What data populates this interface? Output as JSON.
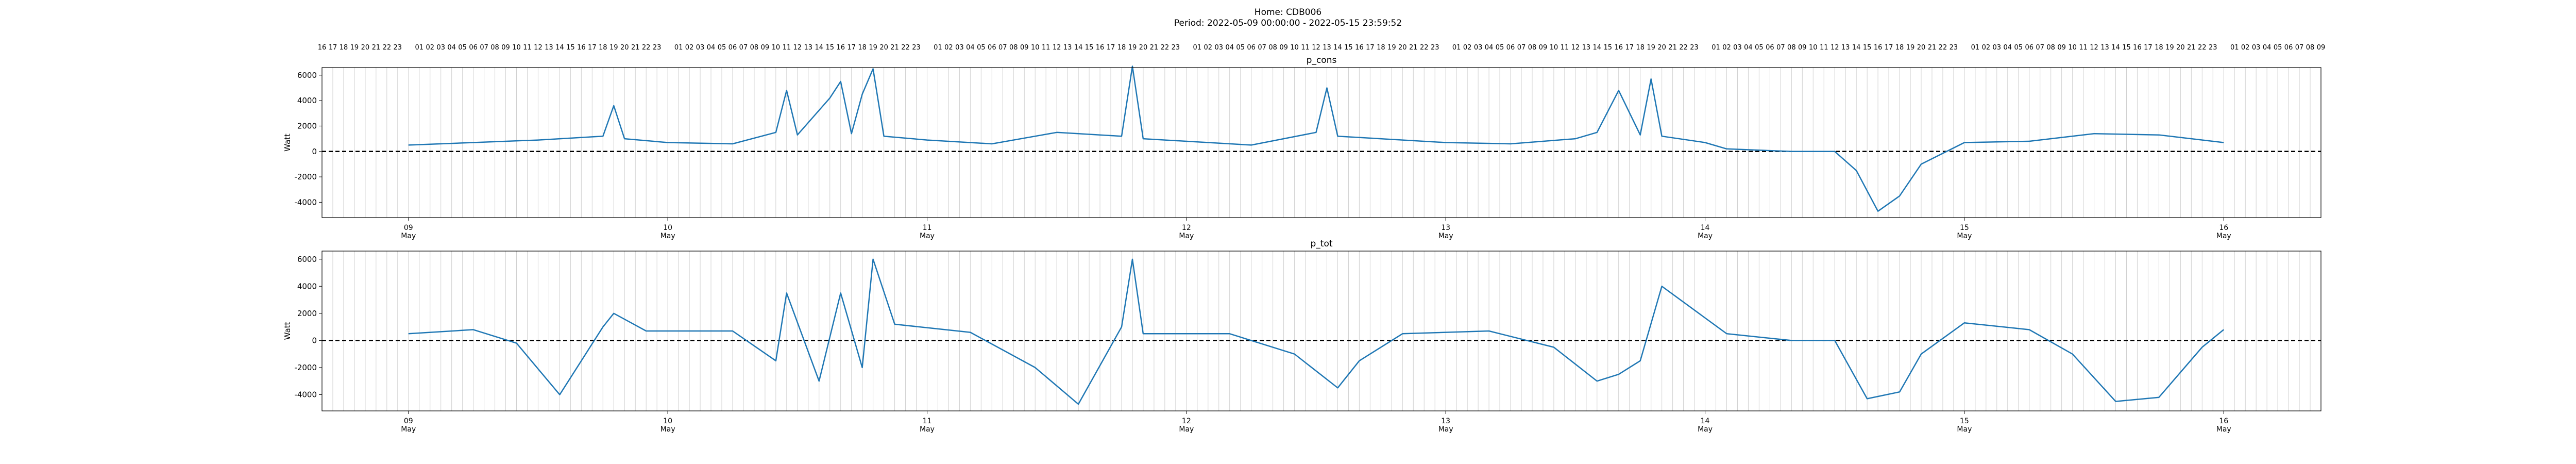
{
  "figure": {
    "title": "Home: CDB006",
    "subtitle": "Period: 2022-05-09 00:00:00 - 2022-05-15 23:59:52"
  },
  "chart_data": [
    {
      "type": "line",
      "title": "p_cons",
      "xlabel": "",
      "ylabel": "Watt",
      "ylim": [
        -5200,
        6600
      ],
      "yticks": [
        -4000,
        -2000,
        0,
        2000,
        4000,
        6000
      ],
      "xlim": [
        "2022-05-08 16:00",
        "2022-05-16 09:00"
      ],
      "date_ticks": [
        "09",
        "10",
        "11",
        "12",
        "13",
        "14",
        "15",
        "16"
      ],
      "date_tick_month": "May",
      "top_hour_ticks": "hours 16 May-08 through 08 May-16, labelled hourly",
      "hourly_grid": true,
      "zero_line": {
        "y": 0,
        "style": "dashed",
        "color": "#000000"
      },
      "line_color": "#1f77b4",
      "series": [
        {
          "x": [
            "2022-05-09 00:00",
            "2022-05-09 06:00",
            "2022-05-09 12:00",
            "2022-05-09 18:00",
            "2022-05-09 19:00",
            "2022-05-09 20:00",
            "2022-05-10 00:00",
            "2022-05-10 06:00",
            "2022-05-10 10:00",
            "2022-05-10 11:00",
            "2022-05-10 12:00",
            "2022-05-10 15:00",
            "2022-05-10 16:00",
            "2022-05-10 17:00",
            "2022-05-10 18:00",
            "2022-05-10 19:00",
            "2022-05-10 20:00",
            "2022-05-11 00:00",
            "2022-05-11 06:00",
            "2022-05-11 12:00",
            "2022-05-11 18:00",
            "2022-05-11 19:00",
            "2022-05-11 20:00",
            "2022-05-12 00:00",
            "2022-05-12 06:00",
            "2022-05-12 12:00",
            "2022-05-12 13:00",
            "2022-05-12 14:00",
            "2022-05-13 00:00",
            "2022-05-13 06:00",
            "2022-05-13 12:00",
            "2022-05-13 14:00",
            "2022-05-13 16:00",
            "2022-05-13 18:00",
            "2022-05-13 19:00",
            "2022-05-13 20:00",
            "2022-05-14 00:00",
            "2022-05-14 02:00",
            "2022-05-14 08:00",
            "2022-05-14 12:00",
            "2022-05-14 14:00",
            "2022-05-14 16:00",
            "2022-05-14 18:00",
            "2022-05-14 20:00",
            "2022-05-15 00:00",
            "2022-05-15 06:00",
            "2022-05-15 12:00",
            "2022-05-15 18:00",
            "2022-05-16 00:00"
          ],
          "y": [
            500,
            700,
            900,
            1200,
            3600,
            1000,
            700,
            600,
            1500,
            4800,
            1300,
            4200,
            5500,
            1400,
            4500,
            6500,
            1200,
            900,
            600,
            1500,
            1200,
            6700,
            1000,
            800,
            500,
            1500,
            5000,
            1200,
            700,
            600,
            1000,
            1500,
            4800,
            1300,
            5700,
            1200,
            700,
            200,
            0,
            0,
            -1500,
            -4700,
            -3500,
            -1000,
            700,
            800,
            1400,
            1300,
            700
          ]
        }
      ]
    },
    {
      "type": "line",
      "title": "p_tot",
      "xlabel": "",
      "ylabel": "Watt",
      "ylim": [
        -5200,
        6600
      ],
      "yticks": [
        -4000,
        -2000,
        0,
        2000,
        4000,
        6000
      ],
      "xlim": [
        "2022-05-08 16:00",
        "2022-05-16 09:00"
      ],
      "date_ticks": [
        "09",
        "10",
        "11",
        "12",
        "13",
        "14",
        "15",
        "16"
      ],
      "date_tick_month": "May",
      "zero_line": {
        "y": 0,
        "style": "dashed",
        "color": "#000000"
      },
      "line_color": "#1f77b4",
      "series": [
        {
          "x": [
            "2022-05-09 00:00",
            "2022-05-09 06:00",
            "2022-05-09 10:00",
            "2022-05-09 14:00",
            "2022-05-09 18:00",
            "2022-05-09 19:00",
            "2022-05-09 22:00",
            "2022-05-10 06:00",
            "2022-05-10 10:00",
            "2022-05-10 11:00",
            "2022-05-10 14:00",
            "2022-05-10 16:00",
            "2022-05-10 18:00",
            "2022-05-10 19:00",
            "2022-05-10 21:00",
            "2022-05-11 04:00",
            "2022-05-11 10:00",
            "2022-05-11 14:00",
            "2022-05-11 18:00",
            "2022-05-11 19:00",
            "2022-05-11 20:00",
            "2022-05-12 04:00",
            "2022-05-12 10:00",
            "2022-05-12 14:00",
            "2022-05-12 16:00",
            "2022-05-12 20:00",
            "2022-05-13 04:00",
            "2022-05-13 10:00",
            "2022-05-13 14:00",
            "2022-05-13 16:00",
            "2022-05-13 18:00",
            "2022-05-13 20:00",
            "2022-05-14 02:00",
            "2022-05-14 08:00",
            "2022-05-14 12:00",
            "2022-05-14 15:00",
            "2022-05-14 18:00",
            "2022-05-14 20:00",
            "2022-05-15 00:00",
            "2022-05-15 06:00",
            "2022-05-15 10:00",
            "2022-05-15 14:00",
            "2022-05-15 18:00",
            "2022-05-15 22:00",
            "2022-05-16 00:00"
          ],
          "y": [
            500,
            800,
            -200,
            -4000,
            1000,
            2000,
            700,
            700,
            -1500,
            3500,
            -3000,
            3500,
            -2000,
            6000,
            1200,
            600,
            -2000,
            -4700,
            1000,
            6000,
            500,
            500,
            -1000,
            -3500,
            -1500,
            500,
            700,
            -500,
            -3000,
            -2500,
            -1500,
            4000,
            500,
            0,
            0,
            -4300,
            -3800,
            -1000,
            1300,
            800,
            -1000,
            -4500,
            -4200,
            -500,
            800
          ]
        }
      ]
    }
  ]
}
